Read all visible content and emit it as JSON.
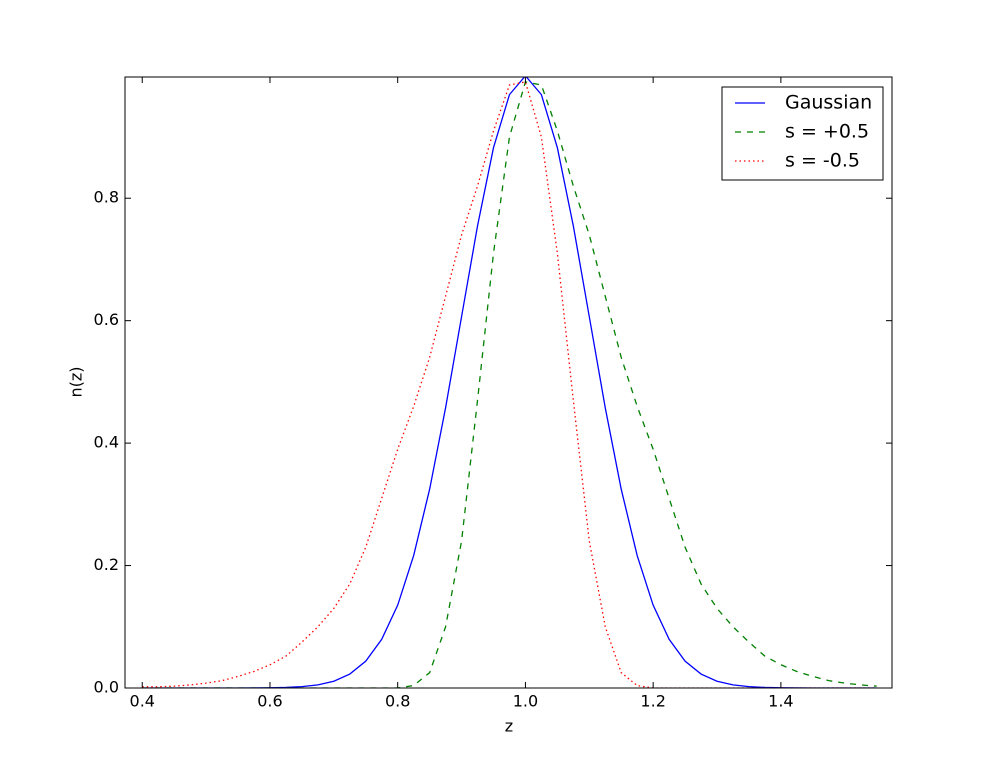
{
  "chart_data": {
    "type": "line",
    "x_label": "z",
    "y_label": "n(z)",
    "x": [
      0.4,
      0.425,
      0.45,
      0.475,
      0.5,
      0.525,
      0.55,
      0.575,
      0.6,
      0.625,
      0.65,
      0.675,
      0.7,
      0.725,
      0.75,
      0.775,
      0.8,
      0.825,
      0.85,
      0.875,
      0.9,
      0.925,
      0.95,
      0.975,
      1.0,
      1.025,
      1.05,
      1.075,
      1.1,
      1.125,
      1.15,
      1.175,
      1.2,
      1.225,
      1.25,
      1.275,
      1.3,
      1.325,
      1.35,
      1.375,
      1.4,
      1.425,
      1.45,
      1.475,
      1.5,
      1.525,
      1.55
    ],
    "series": [
      {
        "name": "Gaussian",
        "color": "#0000ff",
        "linestyle": "solid",
        "values": [
          0,
          0,
          0,
          0,
          0,
          0,
          0,
          0.0001,
          0.0003,
          0.0009,
          0.0022,
          0.0051,
          0.0111,
          0.0228,
          0.0439,
          0.0796,
          0.1353,
          0.2163,
          0.3247,
          0.4578,
          0.6065,
          0.7548,
          0.8825,
          0.9692,
          1,
          0.9692,
          0.8825,
          0.7548,
          0.6065,
          0.4578,
          0.3247,
          0.2163,
          0.1353,
          0.0796,
          0.0439,
          0.0228,
          0.0111,
          0.0051,
          0.0022,
          0.0009,
          0.0003,
          0.0001,
          0,
          0,
          0,
          0,
          0
        ]
      },
      {
        "name": "s = +0.5",
        "color": "#008000",
        "linestyle": "dashed",
        "values": [
          0,
          0,
          0,
          0,
          0,
          0,
          0,
          0,
          0,
          0,
          0,
          0,
          0,
          0,
          0,
          0,
          0,
          0.004,
          0.025,
          0.1,
          0.24,
          0.47,
          0.71,
          0.9,
          0.99,
          0.985,
          0.91,
          0.82,
          0.74,
          0.64,
          0.54,
          0.46,
          0.39,
          0.31,
          0.23,
          0.17,
          0.13,
          0.1,
          0.075,
          0.052,
          0.038,
          0.027,
          0.019,
          0.012,
          0.008,
          0.005,
          0.003
        ]
      },
      {
        "name": "s = -0.5",
        "color": "#ff0000",
        "linestyle": "dotted",
        "values": [
          0.002,
          0.002,
          0.003,
          0.005,
          0.008,
          0.012,
          0.019,
          0.027,
          0.038,
          0.052,
          0.075,
          0.1,
          0.13,
          0.17,
          0.23,
          0.31,
          0.39,
          0.46,
          0.54,
          0.64,
          0.74,
          0.82,
          0.91,
          0.985,
          0.99,
          0.9,
          0.71,
          0.47,
          0.24,
          0.1,
          0.025,
          0.004,
          0,
          0,
          0,
          0,
          0,
          0,
          0,
          0,
          0,
          0,
          0,
          0,
          0,
          0,
          0
        ]
      }
    ],
    "xlim": [
      0.373,
      1.574
    ],
    "ylim": [
      0,
      0.998
    ],
    "xticks": [
      0.4,
      0.6,
      0.8,
      {
        "value": 1,
        "label": "1.0"
      },
      1.2,
      1.4
    ],
    "yticks": [
      {
        "value": 0,
        "label": "0.0"
      },
      0.2,
      0.4,
      0.6,
      0.8
    ],
    "legend": "upper right"
  }
}
